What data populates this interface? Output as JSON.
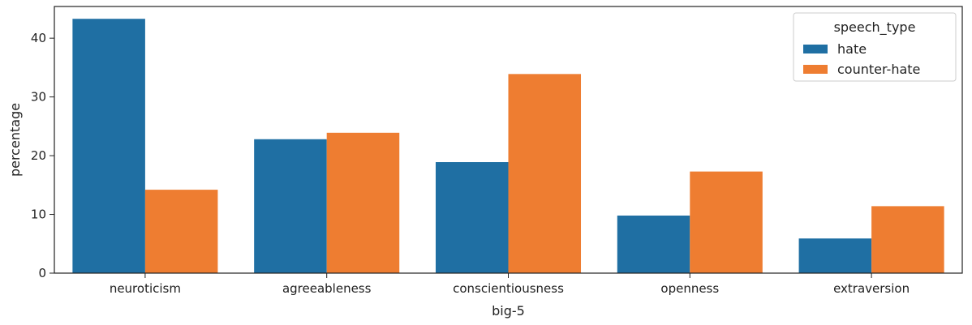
{
  "chart_data": {
    "type": "bar",
    "categories": [
      "neuroticism",
      "agreeableness",
      "conscientiousness",
      "openness",
      "extraversion"
    ],
    "series": [
      {
        "name": "hate",
        "values": [
          43.3,
          22.8,
          18.9,
          9.8,
          5.9
        ],
        "color": "#1f6fa3"
      },
      {
        "name": "counter-hate",
        "values": [
          14.2,
          23.9,
          33.9,
          17.3,
          11.4
        ],
        "color": "#ee7d31"
      }
    ],
    "xlabel": "big-5",
    "ylabel": "percentage",
    "ylim": [
      0,
      45.4
    ],
    "yticks": [
      0,
      10,
      20,
      30,
      40
    ],
    "grid": false,
    "legend": {
      "title": "speech_type",
      "placement": "top-right"
    }
  }
}
